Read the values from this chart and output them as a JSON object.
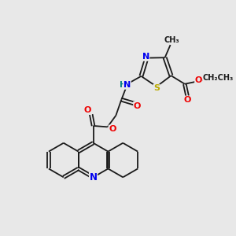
{
  "bg_color": "#e8e8e8",
  "bond_color": "#1a1a1a",
  "atom_colors": {
    "N": "#0000ee",
    "O": "#ee0000",
    "S": "#bbaa00",
    "H": "#008080",
    "C": "#1a1a1a"
  },
  "lw": 1.3,
  "dbo": 0.06,
  "figsize": [
    3.0,
    3.0
  ],
  "dpi": 100
}
